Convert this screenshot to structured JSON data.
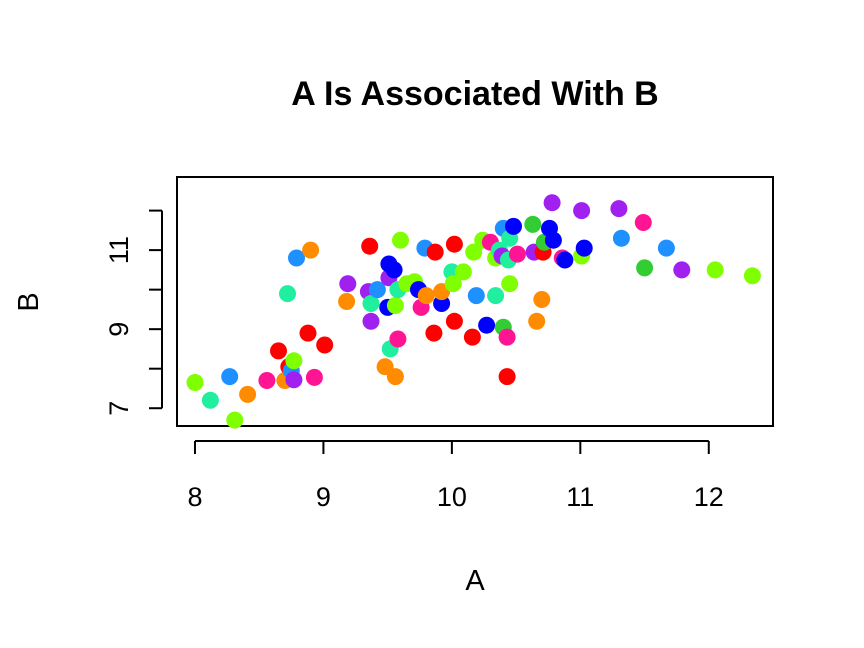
{
  "chart_data": {
    "type": "scatter",
    "title": "A Is Associated With B",
    "xlabel": "A",
    "ylabel": "B",
    "xlim": [
      7.86,
      12.5
    ],
    "ylim": [
      6.55,
      12.85
    ],
    "xticks": [
      8,
      9,
      10,
      11,
      12
    ],
    "yticks_all": [
      7,
      8,
      9,
      10,
      11,
      12
    ],
    "yticks_labeled": [
      7,
      9,
      11
    ],
    "grid": false,
    "legend": "none",
    "palette": [
      "#ff0000",
      "#ff1493",
      "#a020f0",
      "#0000ff",
      "#1e90ff",
      "#1fef9f",
      "#7fff00",
      "#32cd32",
      "#ff8c00"
    ],
    "points": [
      {
        "x": 8.0,
        "y": 7.65,
        "c": 6
      },
      {
        "x": 8.12,
        "y": 7.2,
        "c": 5
      },
      {
        "x": 8.27,
        "y": 7.8,
        "c": 4
      },
      {
        "x": 8.31,
        "y": 6.7,
        "c": 6
      },
      {
        "x": 8.41,
        "y": 7.35,
        "c": 8
      },
      {
        "x": 8.56,
        "y": 7.7,
        "c": 1
      },
      {
        "x": 8.65,
        "y": 8.45,
        "c": 0
      },
      {
        "x": 8.7,
        "y": 7.7,
        "c": 8
      },
      {
        "x": 8.73,
        "y": 8.05,
        "c": 0
      },
      {
        "x": 8.75,
        "y": 7.95,
        "c": 4
      },
      {
        "x": 8.77,
        "y": 7.72,
        "c": 2
      },
      {
        "x": 8.77,
        "y": 8.2,
        "c": 6
      },
      {
        "x": 8.72,
        "y": 9.9,
        "c": 5
      },
      {
        "x": 8.79,
        "y": 10.8,
        "c": 4
      },
      {
        "x": 8.9,
        "y": 11.0,
        "c": 8
      },
      {
        "x": 8.88,
        "y": 8.9,
        "c": 0
      },
      {
        "x": 8.93,
        "y": 7.78,
        "c": 1
      },
      {
        "x": 9.01,
        "y": 8.6,
        "c": 0
      },
      {
        "x": 9.19,
        "y": 10.15,
        "c": 2
      },
      {
        "x": 9.18,
        "y": 9.7,
        "c": 8
      },
      {
        "x": 9.35,
        "y": 9.95,
        "c": 2
      },
      {
        "x": 9.37,
        "y": 9.65,
        "c": 5
      },
      {
        "x": 9.37,
        "y": 9.2,
        "c": 2
      },
      {
        "x": 9.36,
        "y": 11.1,
        "c": 0
      },
      {
        "x": 9.42,
        "y": 10.0,
        "c": 4
      },
      {
        "x": 9.48,
        "y": 8.05,
        "c": 8
      },
      {
        "x": 9.5,
        "y": 9.55,
        "c": 3
      },
      {
        "x": 9.51,
        "y": 10.3,
        "c": 2
      },
      {
        "x": 9.51,
        "y": 10.65,
        "c": 3
      },
      {
        "x": 9.52,
        "y": 8.5,
        "c": 5
      },
      {
        "x": 9.55,
        "y": 10.5,
        "c": 3
      },
      {
        "x": 9.56,
        "y": 7.8,
        "c": 8
      },
      {
        "x": 9.56,
        "y": 9.6,
        "c": 6
      },
      {
        "x": 9.58,
        "y": 10.0,
        "c": 5
      },
      {
        "x": 9.58,
        "y": 8.75,
        "c": 1
      },
      {
        "x": 9.6,
        "y": 11.25,
        "c": 6
      },
      {
        "x": 9.65,
        "y": 10.15,
        "c": 6
      },
      {
        "x": 9.71,
        "y": 10.2,
        "c": 6
      },
      {
        "x": 9.74,
        "y": 10.0,
        "c": 3
      },
      {
        "x": 9.76,
        "y": 9.55,
        "c": 1
      },
      {
        "x": 9.8,
        "y": 9.85,
        "c": 8
      },
      {
        "x": 9.79,
        "y": 11.05,
        "c": 4
      },
      {
        "x": 9.86,
        "y": 8.9,
        "c": 0
      },
      {
        "x": 9.87,
        "y": 10.95,
        "c": 0
      },
      {
        "x": 9.92,
        "y": 9.65,
        "c": 3
      },
      {
        "x": 9.92,
        "y": 9.95,
        "c": 8
      },
      {
        "x": 10.0,
        "y": 10.45,
        "c": 5
      },
      {
        "x": 10.02,
        "y": 9.2,
        "c": 0
      },
      {
        "x": 10.01,
        "y": 10.15,
        "c": 6
      },
      {
        "x": 10.02,
        "y": 11.15,
        "c": 0
      },
      {
        "x": 10.09,
        "y": 10.45,
        "c": 6
      },
      {
        "x": 10.16,
        "y": 8.8,
        "c": 0
      },
      {
        "x": 10.17,
        "y": 10.95,
        "c": 6
      },
      {
        "x": 10.19,
        "y": 9.85,
        "c": 4
      },
      {
        "x": 10.24,
        "y": 11.25,
        "c": 6
      },
      {
        "x": 10.27,
        "y": 9.1,
        "c": 3
      },
      {
        "x": 10.3,
        "y": 11.2,
        "c": 1
      },
      {
        "x": 10.34,
        "y": 10.8,
        "c": 6
      },
      {
        "x": 10.34,
        "y": 9.85,
        "c": 5
      },
      {
        "x": 10.37,
        "y": 11.0,
        "c": 5
      },
      {
        "x": 10.39,
        "y": 10.85,
        "c": 2
      },
      {
        "x": 10.4,
        "y": 11.55,
        "c": 4
      },
      {
        "x": 10.4,
        "y": 9.05,
        "c": 7
      },
      {
        "x": 10.43,
        "y": 7.8,
        "c": 0
      },
      {
        "x": 10.43,
        "y": 8.8,
        "c": 1
      },
      {
        "x": 10.44,
        "y": 10.75,
        "c": 5
      },
      {
        "x": 10.45,
        "y": 10.15,
        "c": 6
      },
      {
        "x": 10.45,
        "y": 11.3,
        "c": 5
      },
      {
        "x": 10.48,
        "y": 11.6,
        "c": 3
      },
      {
        "x": 10.51,
        "y": 10.9,
        "c": 1
      },
      {
        "x": 10.63,
        "y": 11.65,
        "c": 7
      },
      {
        "x": 10.64,
        "y": 10.95,
        "c": 2
      },
      {
        "x": 10.66,
        "y": 9.2,
        "c": 8
      },
      {
        "x": 10.7,
        "y": 9.75,
        "c": 8
      },
      {
        "x": 10.71,
        "y": 10.95,
        "c": 0
      },
      {
        "x": 10.72,
        "y": 11.2,
        "c": 7
      },
      {
        "x": 10.76,
        "y": 11.55,
        "c": 3
      },
      {
        "x": 10.78,
        "y": 12.2,
        "c": 2
      },
      {
        "x": 10.79,
        "y": 11.25,
        "c": 3
      },
      {
        "x": 10.86,
        "y": 10.8,
        "c": 1
      },
      {
        "x": 10.88,
        "y": 10.75,
        "c": 3
      },
      {
        "x": 11.01,
        "y": 10.85,
        "c": 6
      },
      {
        "x": 11.01,
        "y": 12.0,
        "c": 2
      },
      {
        "x": 11.03,
        "y": 11.05,
        "c": 3
      },
      {
        "x": 11.3,
        "y": 12.05,
        "c": 2
      },
      {
        "x": 11.32,
        "y": 11.3,
        "c": 4
      },
      {
        "x": 11.49,
        "y": 11.7,
        "c": 1
      },
      {
        "x": 11.5,
        "y": 10.55,
        "c": 7
      },
      {
        "x": 11.67,
        "y": 11.05,
        "c": 4
      },
      {
        "x": 11.79,
        "y": 10.5,
        "c": 2
      },
      {
        "x": 12.05,
        "y": 10.5,
        "c": 6
      },
      {
        "x": 12.34,
        "y": 10.35,
        "c": 6
      }
    ]
  }
}
